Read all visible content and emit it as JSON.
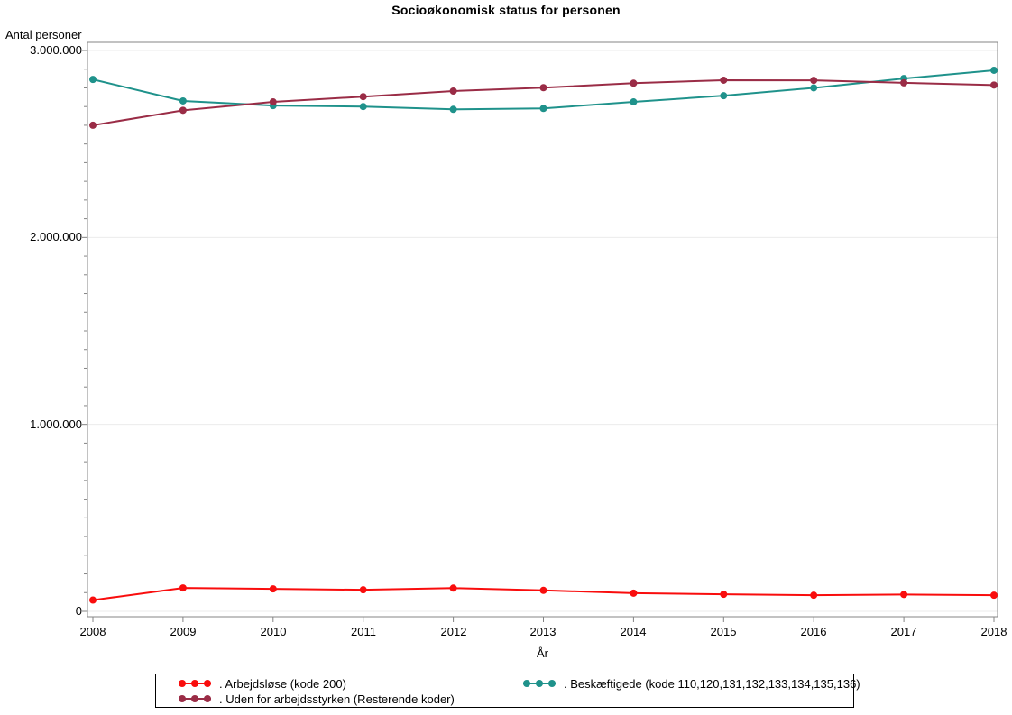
{
  "title": "Socioøkonomisk status for personen",
  "y_axis": {
    "label": "Antal personer",
    "tick_labels": [
      "0",
      "1.000.000",
      "2.000.000",
      "3.000.000"
    ],
    "tick_values": [
      0,
      1000000,
      2000000,
      3000000
    ],
    "minor_tick_step": 100000
  },
  "x_axis": {
    "label": "År",
    "tick_labels": [
      "2008",
      "2009",
      "2010",
      "2011",
      "2012",
      "2013",
      "2014",
      "2015",
      "2016",
      "2017",
      "2018"
    ]
  },
  "legend": {
    "items": [
      {
        "series": 0,
        "label": ". Arbejdsløse (kode 200)"
      },
      {
        "series": 1,
        "label": ". Beskæftigede (kode 110,120,131,132,133,134,135,136)"
      },
      {
        "series": 2,
        "label": ". Uden for arbejdsstyrken (Resterende koder)"
      }
    ]
  },
  "colors": {
    "axis": "#848484",
    "grid": "#ebebeb",
    "text": "#000000",
    "legend_border": "#000000",
    "background": "#ffffff"
  },
  "chart_data": {
    "type": "line",
    "title": "Socioøkonomisk status for personen",
    "xlabel": "År",
    "ylabel": "Antal personer",
    "ylim": [
      0,
      3000000
    ],
    "grid": "horizontal-major",
    "legend_position": "bottom",
    "x": [
      2008,
      2009,
      2010,
      2011,
      2012,
      2013,
      2014,
      2015,
      2016,
      2017,
      2018
    ],
    "series": [
      {
        "name": "Arbejdsløse (kode 200)",
        "color": "#f90d0d",
        "values": [
          60000,
          125000,
          120000,
          115000,
          124000,
          112000,
          97000,
          91000,
          86000,
          90000,
          86000
        ]
      },
      {
        "name": "Beskæftigede (kode 110,120,131,132,133,134,135,136)",
        "color": "#1f928b",
        "values": [
          2845000,
          2730000,
          2705000,
          2700000,
          2685000,
          2690000,
          2725000,
          2758000,
          2800000,
          2850000,
          2894000
        ]
      },
      {
        "name": "Uden for arbejdsstyrken (Resterende koder)",
        "color": "#9a2c46",
        "values": [
          2600000,
          2680000,
          2725000,
          2753000,
          2783000,
          2801000,
          2825000,
          2841000,
          2840000,
          2827000,
          2815000
        ]
      }
    ]
  }
}
